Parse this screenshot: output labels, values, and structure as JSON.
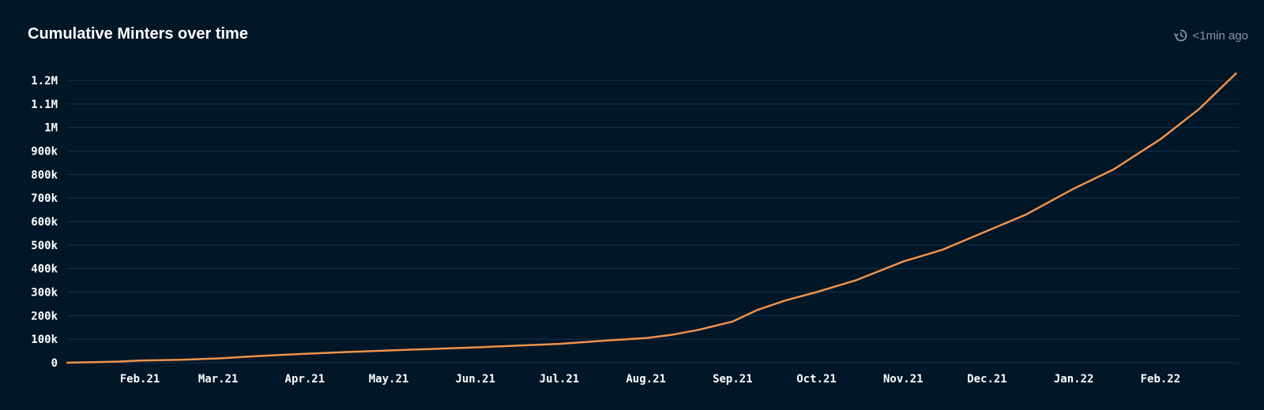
{
  "header": {
    "title": "Cumulative Minters over time",
    "updated": "<1min ago"
  },
  "colors": {
    "background": "#011627",
    "grid": "#1a3348",
    "line": "#f0924c",
    "tick_text": "#ffffff"
  },
  "chart_data": {
    "type": "line",
    "title": "Cumulative Minters over time",
    "xlabel": "",
    "ylabel": "",
    "x_range": [
      "2021-01-06",
      "2022-03-01"
    ],
    "ylim": [
      0,
      1200000
    ],
    "y_ticks": [
      0,
      100000,
      200000,
      300000,
      400000,
      500000,
      600000,
      700000,
      800000,
      900000,
      1000000,
      1100000,
      1200000
    ],
    "y_tick_labels": [
      "0",
      "100k",
      "200k",
      "300k",
      "400k",
      "500k",
      "600k",
      "700k",
      "800k",
      "900k",
      "1M",
      "1.1M",
      "1.2M"
    ],
    "x_ticks": [
      "2021-02-01",
      "2021-03-01",
      "2021-04-01",
      "2021-05-01",
      "2021-06-01",
      "2021-07-01",
      "2021-08-01",
      "2021-09-01",
      "2021-10-01",
      "2021-11-01",
      "2021-12-01",
      "2022-01-01",
      "2022-02-01"
    ],
    "x_tick_labels": [
      "Feb.21",
      "Mar.21",
      "Apr.21",
      "May.21",
      "Jun.21",
      "Jul.21",
      "Aug.21",
      "Sep.21",
      "Oct.21",
      "Nov.21",
      "Dec.21",
      "Jan.22",
      "Feb.22"
    ],
    "grid": true,
    "legend": "none",
    "series": [
      {
        "x": [
          "2021-01-06",
          "2021-01-15",
          "2021-01-25",
          "2021-02-01",
          "2021-02-15",
          "2021-03-01",
          "2021-03-15",
          "2021-04-01",
          "2021-04-15",
          "2021-05-01",
          "2021-05-15",
          "2021-06-01",
          "2021-06-15",
          "2021-07-01",
          "2021-07-15",
          "2021-08-01",
          "2021-08-10",
          "2021-08-20",
          "2021-09-01",
          "2021-09-10",
          "2021-09-20",
          "2021-10-01",
          "2021-10-15",
          "2021-11-01",
          "2021-11-15",
          "2021-12-01",
          "2021-12-15",
          "2022-01-01",
          "2022-01-15",
          "2022-02-01",
          "2022-02-15",
          "2022-02-28"
        ],
        "y": [
          0,
          2000,
          5000,
          9000,
          12000,
          18000,
          28000,
          38000,
          45000,
          52000,
          58000,
          65000,
          72000,
          80000,
          92000,
          105000,
          118000,
          140000,
          175000,
          225000,
          265000,
          300000,
          350000,
          430000,
          480000,
          560000,
          630000,
          740000,
          820000,
          950000,
          1080000,
          1230000
        ]
      }
    ]
  }
}
